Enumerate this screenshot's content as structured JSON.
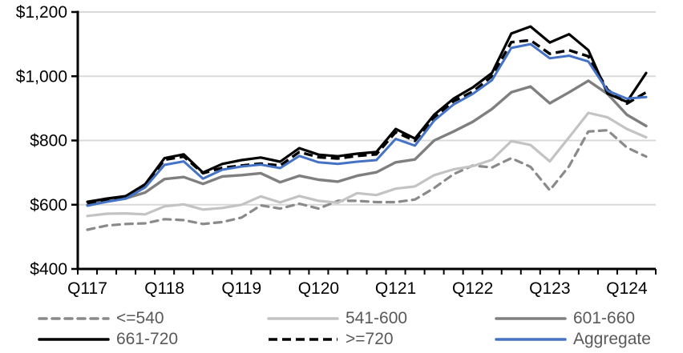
{
  "chart_data": {
    "type": "line",
    "title": "",
    "x_axis": {
      "unit": "quarter",
      "shown_labels": [
        "Q117",
        "Q118",
        "Q119",
        "Q120",
        "Q121",
        "Q122",
        "Q123",
        "Q124"
      ],
      "points": [
        "2017Q1",
        "2017Q2",
        "2017Q3",
        "2017Q4",
        "2018Q1",
        "2018Q2",
        "2018Q3",
        "2018Q4",
        "2019Q1",
        "2019Q2",
        "2019Q3",
        "2019Q4",
        "2020Q1",
        "2020Q2",
        "2020Q3",
        "2020Q4",
        "2021Q1",
        "2021Q2",
        "2021Q3",
        "2021Q4",
        "2022Q1",
        "2022Q2",
        "2022Q3",
        "2022Q4",
        "2023Q1",
        "2023Q2",
        "2023Q3",
        "2023Q4",
        "2024Q1",
        "2024Q2"
      ]
    },
    "y_axis": {
      "min": 400,
      "max": 1200,
      "tick_step": 200,
      "tick_values": [
        400,
        600,
        800,
        1000,
        1200
      ],
      "tick_labels": [
        "$400",
        "$600",
        "$800",
        "$1,000",
        "$1,200"
      ],
      "grid": true
    },
    "series": [
      {
        "name": "<=540",
        "color": "#8a8a8a",
        "style": "dashed",
        "dash": "9 7",
        "width": 3.2,
        "linecap": "round",
        "values": [
          522,
          535,
          540,
          542,
          555,
          552,
          540,
          546,
          560,
          598,
          588,
          603,
          588,
          612,
          612,
          608,
          608,
          616,
          652,
          695,
          722,
          716,
          745,
          718,
          645,
          720,
          828,
          832,
          778,
          750
        ]
      },
      {
        "name": "541-600",
        "color": "#c3c3c3",
        "style": "solid",
        "dash": "",
        "width": 3.2,
        "linecap": "round",
        "values": [
          565,
          572,
          573,
          570,
          595,
          601,
          585,
          590,
          600,
          626,
          607,
          627,
          612,
          606,
          636,
          630,
          650,
          657,
          692,
          710,
          720,
          740,
          798,
          786,
          735,
          810,
          886,
          872,
          836,
          810
        ]
      },
      {
        "name": "601-660",
        "color": "#7f7f7f",
        "style": "solid",
        "dash": "",
        "width": 3.4,
        "linecap": "round",
        "values": [
          600,
          612,
          620,
          638,
          680,
          686,
          665,
          688,
          692,
          698,
          670,
          690,
          678,
          672,
          690,
          701,
          732,
          741,
          800,
          828,
          858,
          898,
          950,
          968,
          916,
          950,
          986,
          945,
          880,
          845
        ]
      },
      {
        "name": "661-720",
        "color": "#000000",
        "style": "solid",
        "dash": "",
        "width": 3.2,
        "linecap": "round",
        "values": [
          609,
          619,
          627,
          664,
          745,
          757,
          700,
          727,
          739,
          747,
          734,
          776,
          756,
          751,
          759,
          764,
          836,
          806,
          880,
          930,
          965,
          1010,
          1133,
          1155,
          1105,
          1131,
          1081,
          946,
          920,
          1010
        ]
      },
      {
        "name": ">=720",
        "color": "#000000",
        "style": "dashed",
        "dash": "11 6",
        "width": 3.4,
        "linecap": "butt",
        "values": [
          605,
          616,
          624,
          660,
          740,
          750,
          698,
          715,
          722,
          728,
          722,
          764,
          748,
          744,
          752,
          757,
          826,
          799,
          872,
          922,
          952,
          1000,
          1106,
          1112,
          1070,
          1081,
          1062,
          958,
          915,
          950
        ]
      },
      {
        "name": "Aggregate",
        "color": "#4472c4",
        "style": "solid",
        "dash": "",
        "width": 3,
        "linecap": "round",
        "values": [
          597,
          609,
          619,
          654,
          724,
          735,
          681,
          709,
          719,
          725,
          714,
          752,
          732,
          727,
          734,
          739,
          805,
          784,
          862,
          912,
          945,
          988,
          1088,
          1100,
          1056,
          1064,
          1046,
          955,
          930,
          935
        ]
      }
    ],
    "legend": {
      "position": "bottom",
      "rows": [
        [
          "<=540",
          "541-600",
          "601-660"
        ],
        [
          "661-720",
          ">=720",
          "Aggregate"
        ]
      ]
    },
    "colors": {
      "gridline": "#d9d9d9",
      "axis": "#000000",
      "tick_label": "#000000",
      "legend_text": "#595959",
      "accent_blue": "#4472c4"
    }
  }
}
